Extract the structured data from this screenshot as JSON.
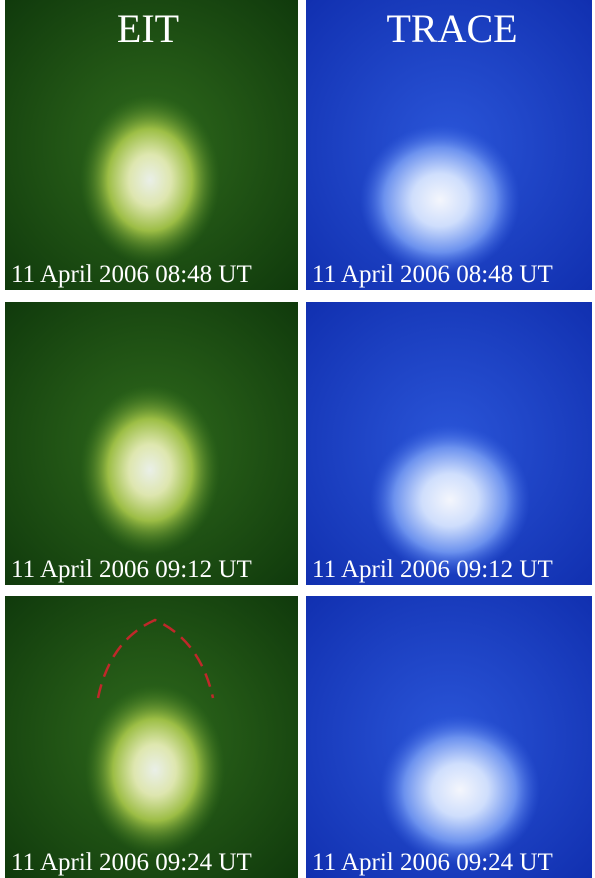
{
  "columns": [
    "EIT",
    "TRACE"
  ],
  "rows": [
    {
      "eit": "11 April 2006 08:48 UT",
      "trace": "11 April 2006 08:48 UT"
    },
    {
      "eit": "11 April 2006 09:12 UT",
      "trace": "11 April 2006 09:12 UT"
    },
    {
      "eit": "11 April 2006 09:24 UT",
      "trace": "11 April 2006 09:24 UT"
    }
  ]
}
